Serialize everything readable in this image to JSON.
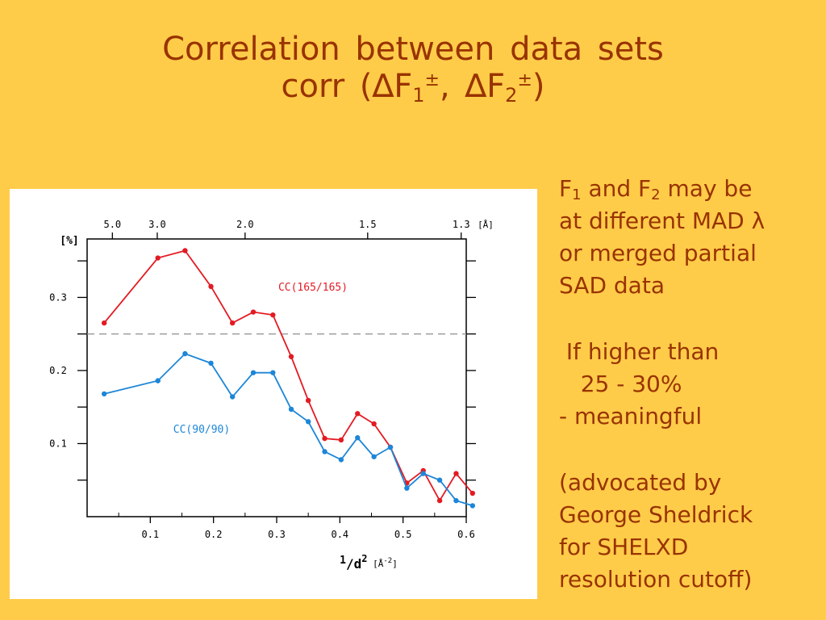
{
  "slide": {
    "title_line1": "Correlation between data sets",
    "title_line2_prefix": "corr (",
    "title_delta1": "∆F",
    "title_sub1": "1",
    "title_sup1": "±",
    "title_sep": ", ",
    "title_delta2": "∆F",
    "title_sub2": "2",
    "title_sup2": "±",
    "title_suffix": ")"
  },
  "side_text": {
    "l1_a": "F",
    "l1_sub1": "1",
    "l1_b": " and F",
    "l1_sub2": "2",
    "l1_c": " may be",
    "l2": "at different MAD λ",
    "l3": "or merged partial",
    "l4": "SAD data",
    "l5": " If higher than",
    "l6": "   25 - 30%",
    "l7": "- meaningful",
    "l8": "(advocated by",
    "l9": "George Sheldrick",
    "l10": "for SHELXD",
    "l11": "resolution cutoff)"
  },
  "colors": {
    "background": "#FFCC4A",
    "text": "#993300",
    "red_series": "#E31B23",
    "blue_series": "#1C86D8",
    "threshold": "#999999"
  },
  "chart_data": {
    "type": "line",
    "xlabel": "1/d² [Å⁻²]",
    "xlabel_main": "1",
    "xlabel_den": "/d",
    "xlabel_exp": "2",
    "xlabel_unit": "[Å",
    "xlabel_unit_exp": "-2",
    "xlabel_unit_end": "]",
    "ylabel": "[%]",
    "top_axis_unit": "[Å]",
    "xlim": [
      0,
      0.6
    ],
    "ylim": [
      0,
      0.38
    ],
    "x_ticks": [
      0.1,
      0.2,
      0.3,
      0.4,
      0.5,
      0.6
    ],
    "x_tick_labels": [
      "0.1",
      "0.2",
      "0.3",
      "0.4",
      "0.5",
      "0.6"
    ],
    "y_ticks": [
      0.1,
      0.2,
      0.3
    ],
    "y_tick_labels": [
      "0.1",
      "0.2",
      "0.3"
    ],
    "top_ticks": [
      {
        "label": "5.0",
        "x": 0.04
      },
      {
        "label": "3.0",
        "x": 0.111
      },
      {
        "label": "2.0",
        "x": 0.25
      },
      {
        "label": "1.5",
        "x": 0.444
      },
      {
        "label": "1.3",
        "x": 0.592
      }
    ],
    "threshold": 0.25,
    "series": [
      {
        "name": "CC(165/165)",
        "color": "#E31B23",
        "x": [
          0.027,
          0.112,
          0.155,
          0.196,
          0.23,
          0.263,
          0.294,
          0.323,
          0.35,
          0.376,
          0.402,
          0.428,
          0.454,
          0.48,
          0.506,
          0.532,
          0.558,
          0.584,
          0.61
        ],
        "y": [
          0.265,
          0.354,
          0.364,
          0.315,
          0.265,
          0.28,
          0.276,
          0.219,
          0.159,
          0.107,
          0.105,
          0.141,
          0.127,
          0.095,
          0.046,
          0.063,
          0.022,
          0.059,
          0.032
        ]
      },
      {
        "name": "CC(90/90)",
        "color": "#1C86D8",
        "x": [
          0.027,
          0.112,
          0.155,
          0.196,
          0.23,
          0.263,
          0.294,
          0.323,
          0.35,
          0.376,
          0.402,
          0.428,
          0.454,
          0.48,
          0.506,
          0.532,
          0.558,
          0.584,
          0.61
        ],
        "y": [
          0.168,
          0.186,
          0.223,
          0.21,
          0.164,
          0.197,
          0.197,
          0.147,
          0.13,
          0.089,
          0.078,
          0.108,
          0.082,
          0.095,
          0.039,
          0.059,
          0.05,
          0.022,
          0.015
        ]
      }
    ],
    "annotations": [
      {
        "text": "CC(165/165)",
        "series": 0
      },
      {
        "text": "CC(90/90)",
        "series": 1
      }
    ]
  }
}
